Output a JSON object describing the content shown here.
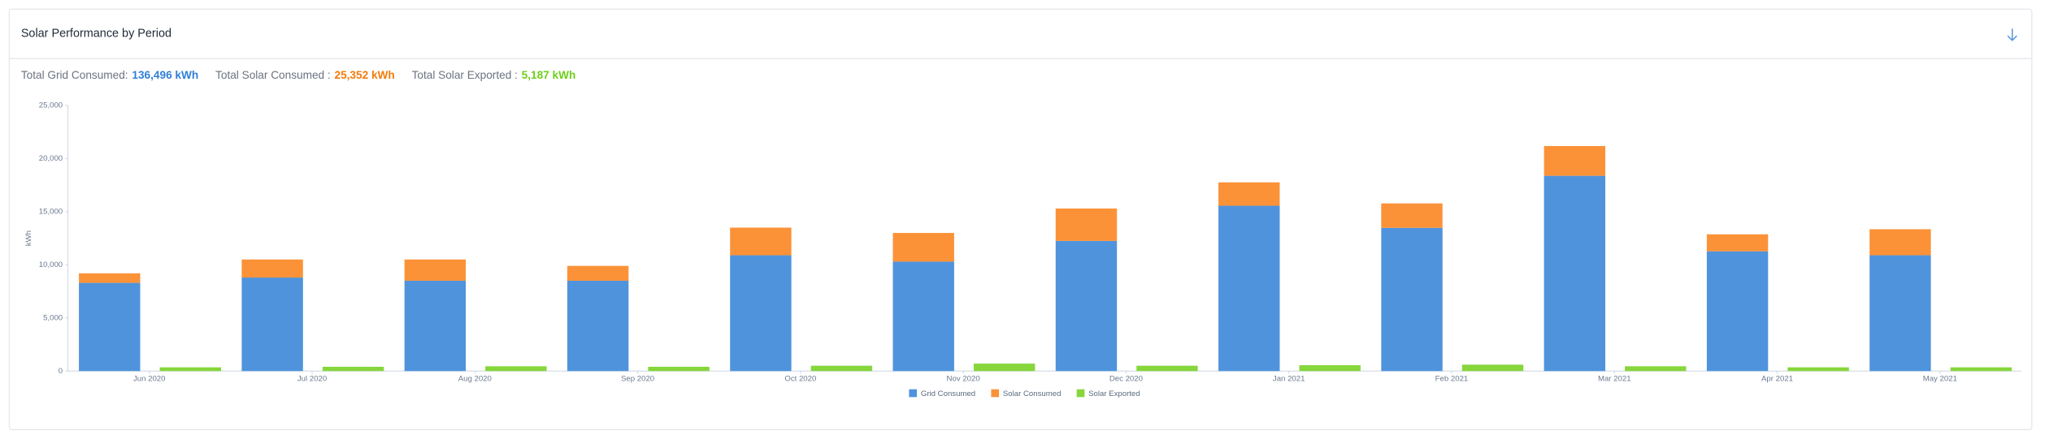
{
  "header": {
    "title": "Solar Performance by Period"
  },
  "summary": [
    {
      "label": "Total Grid Consumed:",
      "value": "136,496 kWh"
    },
    {
      "label": "Total Solar Consumed :",
      "value": "25,352 kWh"
    },
    {
      "label": "Total Solar Exported :",
      "value": "5,187 kWh"
    }
  ],
  "chart_data": {
    "type": "bar",
    "stacked": true,
    "y_label": "kWh",
    "categories": [
      "Jun 2020",
      "Jul 2020",
      "Aug 2020",
      "Sep 2020",
      "Oct 2020",
      "Nov 2020",
      "Dec 2020",
      "Jan 2021",
      "Feb 2021",
      "Mar 2021",
      "Apr 2021",
      "May 2021"
    ],
    "series": [
      {
        "name": "Grid Consumed",
        "color": "#4f93dc",
        "values": [
          8300,
          8800,
          8500,
          8500,
          10900,
          10300,
          12250,
          15560,
          13480,
          18380,
          11270,
          10900
        ]
      },
      {
        "name": "Solar Consumed",
        "color": "#fb9238",
        "values": [
          900,
          1700,
          2000,
          1400,
          2600,
          2700,
          3050,
          2200,
          2300,
          2800,
          1600,
          2450
        ]
      },
      {
        "name": "Solar Exported",
        "color": "#86d63c",
        "values": [
          350,
          400,
          450,
          400,
          500,
          700,
          500,
          550,
          600,
          450,
          350,
          350
        ]
      }
    ],
    "ylim": [
      0,
      25000
    ],
    "yticks": [
      0,
      {
        "value": 5000,
        "label": "5,000"
      },
      {
        "value": 10000,
        "label": "10,000"
      },
      {
        "value": 15000,
        "label": "15,000"
      },
      {
        "value": 20000,
        "label": "20,000"
      },
      {
        "value": 25000,
        "label": "25,000"
      }
    ]
  }
}
